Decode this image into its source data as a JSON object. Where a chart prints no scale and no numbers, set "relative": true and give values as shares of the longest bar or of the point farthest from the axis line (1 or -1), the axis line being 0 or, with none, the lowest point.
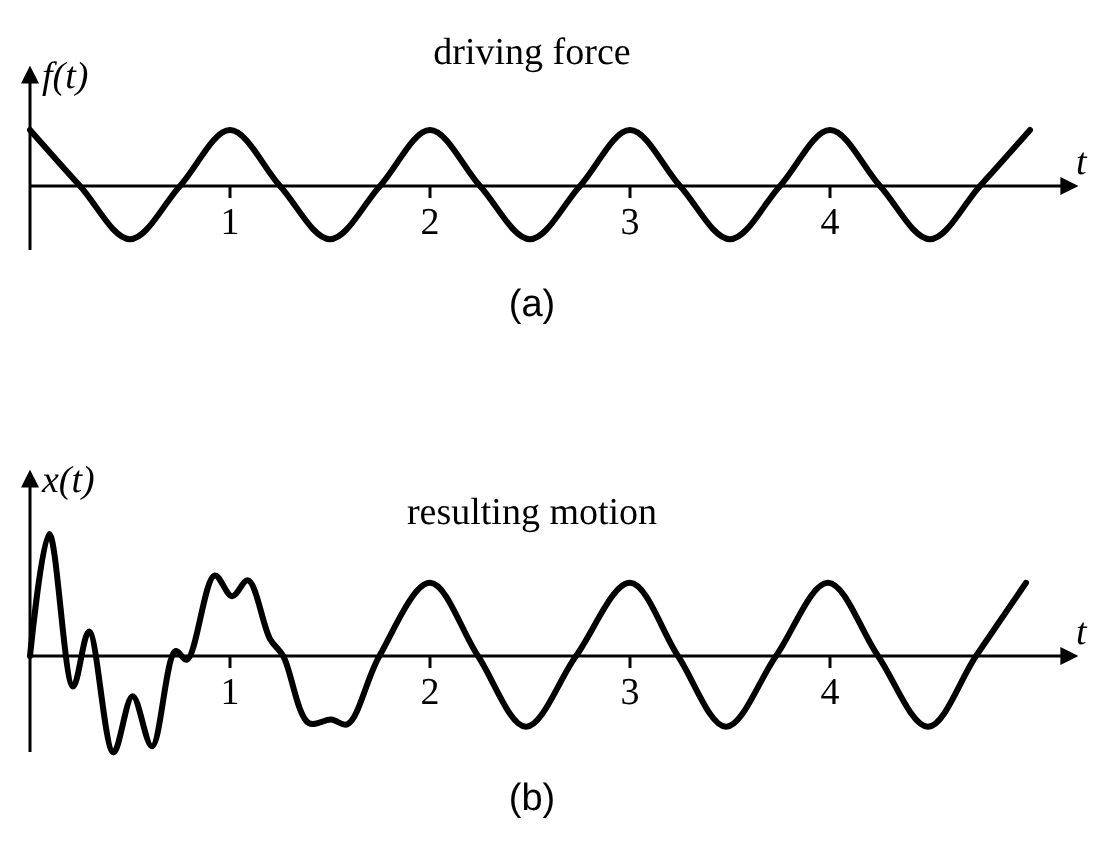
{
  "chart_data": [
    {
      "type": "line",
      "title": "driving force",
      "xlabel": "t",
      "ylabel": "f(t)",
      "relative": true,
      "xlim": [
        0,
        5.17
      ],
      "xticks": [
        1,
        2,
        3,
        4
      ],
      "annotations": [
        "(a)"
      ],
      "x": [
        0,
        0.25,
        0.5,
        0.75,
        1,
        1.25,
        1.5,
        1.75,
        2,
        2.25,
        2.5,
        2.75,
        3,
        3.25,
        3.5,
        3.75,
        4,
        4.25,
        4.5,
        4.75,
        5
      ],
      "series": [
        {
          "color": "#000000",
          "values": [
            1,
            0,
            -0.95,
            0,
            1,
            0,
            -0.95,
            0,
            1,
            0,
            -0.95,
            0,
            1,
            0,
            -0.95,
            0,
            1,
            0,
            -0.95,
            0,
            1
          ]
        }
      ]
    },
    {
      "type": "line",
      "title": "resulting motion",
      "xlabel": "t",
      "ylabel": "x(t)",
      "relative": true,
      "xlim": [
        0,
        5.17
      ],
      "xticks": [
        1,
        2,
        3,
        4
      ],
      "annotations": [
        "(b)"
      ],
      "x": [
        0,
        0.096,
        0.215,
        0.295,
        0.417,
        0.513,
        0.61,
        0.727,
        0.785,
        0.923,
        1.01,
        1.09,
        1.2,
        1.266,
        1.394,
        1.506,
        1.587,
        1.747,
        2,
        2.24,
        2.48,
        2.73,
        3,
        3.24,
        3.48,
        3.73,
        3.99,
        4.24,
        4.49,
        4.73,
        4.98
      ],
      "series": [
        {
          "color": "#000000",
          "values": [
            0,
            1,
            -0.25,
            0.2,
            -0.79,
            -0.33,
            -0.74,
            0.04,
            -0.03,
            0.66,
            0.49,
            0.62,
            0.14,
            0,
            -0.55,
            -0.52,
            -0.56,
            0,
            0.6,
            0,
            -0.58,
            0,
            0.6,
            0,
            -0.58,
            0,
            0.6,
            0,
            -0.58,
            0,
            0.6
          ]
        }
      ]
    }
  ]
}
